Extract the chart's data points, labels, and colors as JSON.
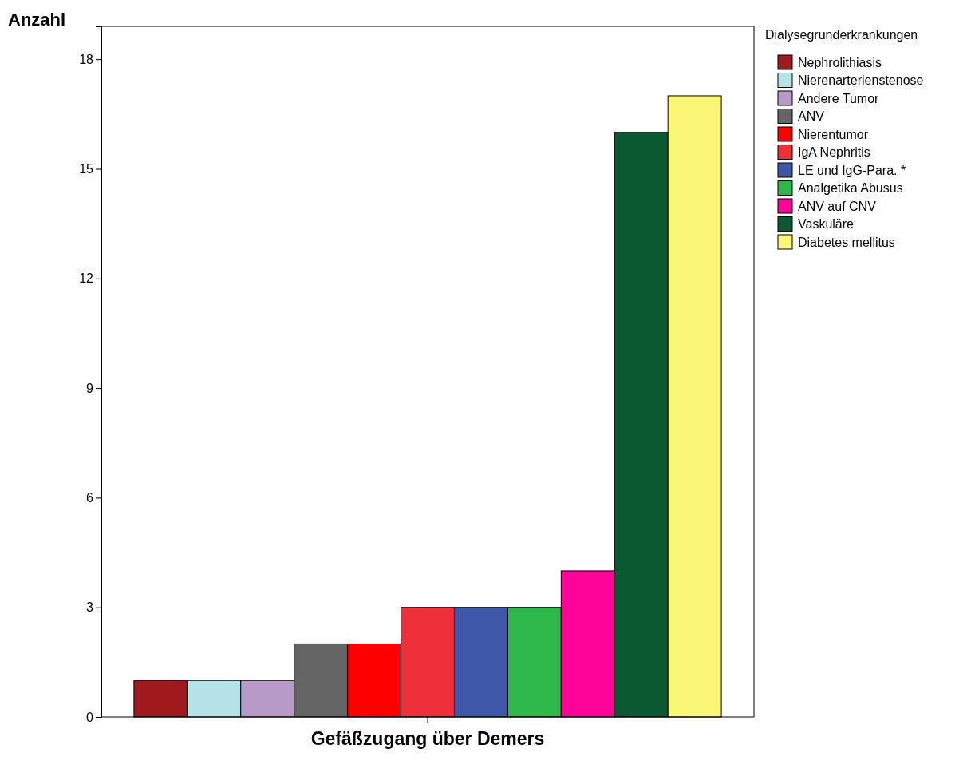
{
  "chart_data": {
    "type": "bar",
    "ylabel": "Anzahl",
    "legend_title": "Dialysegrunderkrankungen",
    "legend": "top right",
    "grid": false,
    "categories": [
      "Gefäßzugang über Demers"
    ],
    "ylim": [
      0,
      18.9
    ],
    "yticks": [
      0,
      3,
      6,
      9,
      12,
      15,
      18
    ],
    "series": [
      {
        "name": "Nephrolithiasis",
        "color": "#a0191e",
        "values": [
          1
        ]
      },
      {
        "name": "Nierenarterienstenose",
        "color": "#b4e4e6",
        "values": [
          1
        ]
      },
      {
        "name": "Andere Tumor",
        "color": "#b89ac8",
        "values": [
          1
        ]
      },
      {
        "name": "ANV",
        "color": "#646464",
        "values": [
          2
        ]
      },
      {
        "name": "Nierentumor",
        "color": "#fe0000",
        "values": [
          2
        ]
      },
      {
        "name": "IgA Nephritis",
        "color": "#ef3038",
        "values": [
          3
        ]
      },
      {
        "name": "LE und IgG-Para. *",
        "color": "#3f57a8",
        "values": [
          3
        ]
      },
      {
        "name": "Analgetika Abusus",
        "color": "#2fb84a",
        "values": [
          3
        ]
      },
      {
        "name": "ANV auf CNV",
        "color": "#fe0498",
        "values": [
          4
        ]
      },
      {
        "name": "Vaskuläre",
        "color": "#0b5930",
        "values": [
          16
        ]
      },
      {
        "name": "Diabetes mellitus",
        "color": "#fbf776",
        "values": [
          17
        ]
      }
    ]
  }
}
